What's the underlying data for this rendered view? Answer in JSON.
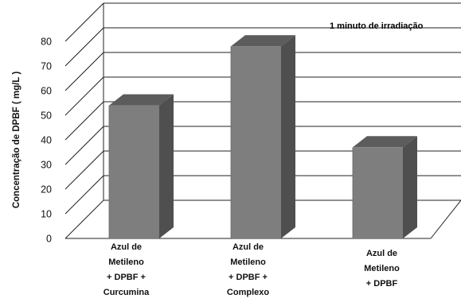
{
  "chart_data": {
    "type": "bar",
    "style": "3d-column",
    "annotation": "1 minuto de irradiação",
    "ylabel": "Concentração de DPBF ( mg/L )",
    "xlabel": "",
    "ylim": [
      0,
      80
    ],
    "yticks": [
      0,
      10,
      20,
      30,
      40,
      50,
      60,
      70,
      80
    ],
    "grid": true,
    "legend": "none",
    "categories": [
      [
        "Azul de",
        "Metileno",
        "+ DPBF +",
        "Curcumina"
      ],
      [
        "Azul de",
        "Metileno",
        "+ DPBF +",
        "Complexo"
      ],
      [
        "Azul de",
        "Metileno",
        "+ DPBF"
      ]
    ],
    "values": [
      54,
      78,
      37
    ],
    "colors": {
      "bar_front": "#7e7e7e",
      "bar_side": "#4f4f4f",
      "bar_top": "#5c5c5c",
      "grid": "#222222"
    }
  }
}
